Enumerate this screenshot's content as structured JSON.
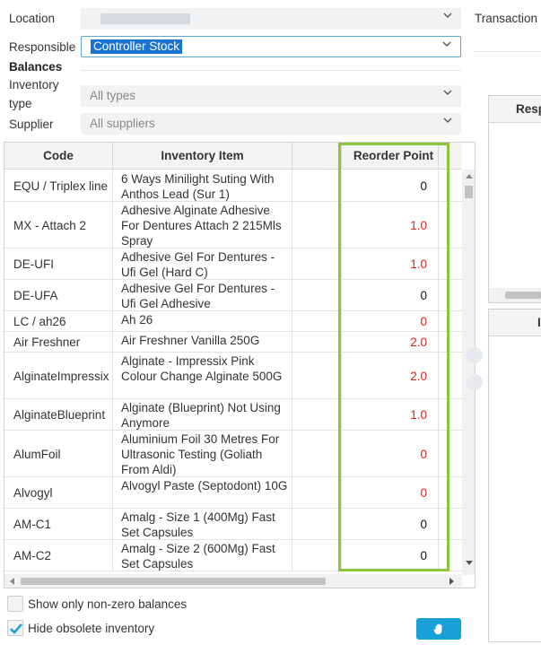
{
  "filters": {
    "location_label": "Location",
    "responsible_label": "Responsible",
    "responsible_value": "Controller Stock",
    "transaction_label": "Transaction",
    "balances_title": "Balances",
    "inventory_type_label_1": "Inventory",
    "inventory_type_label_2": "type",
    "inventory_type_value": "All types",
    "supplier_label": "Supplier",
    "supplier_value": "All suppliers"
  },
  "grid": {
    "columns": [
      "Code",
      "Inventory Item",
      "",
      "Reorder Point"
    ],
    "rows": [
      {
        "code": "EQU / Triplex line",
        "item": "6 Ways Minilight Suting With Anthos Lead (Sur 1)",
        "reorder": "0",
        "color": "black",
        "h": 35
      },
      {
        "code": "MX - Attach 2",
        "item": "Adhesive Alginate Adhesive For Dentures Attach 2 215Mls Spray",
        "reorder": "1.0",
        "color": "red",
        "h": 52
      },
      {
        "code": "DE-UFI",
        "item": "Adhesive Gel For Dentures - Ufi Gel (Hard C)",
        "reorder": "1.0",
        "color": "red",
        "h": 35
      },
      {
        "code": "DE-UFA",
        "item": "Adhesive Gel For Dentures - Ufi Gel Adhesive",
        "reorder": "0",
        "color": "black",
        "h": 35
      },
      {
        "code": "LC / ah26",
        "item": "Ah 26",
        "reorder": "0",
        "color": "red",
        "h": 23
      },
      {
        "code": "Air Freshner",
        "item": "Air Freshner Vanilla 250G",
        "reorder": "2.0",
        "color": "red",
        "h": 23
      },
      {
        "code": "AlginateImpressix",
        "item": "Alginate - Impressix Pink Colour Change Alginate 500G",
        "reorder": "2.0",
        "color": "red",
        "h": 52
      },
      {
        "code": "AlginateBlueprint",
        "item": "Alginate (Blueprint) Not Using Anymore",
        "reorder": "1.0",
        "color": "red",
        "h": 35
      },
      {
        "code": "AlumFoil",
        "item": "Aluminium Foil 30 Metres For Ultrasonic Testing (Goliath From Aldi)",
        "reorder": "0",
        "color": "red",
        "h": 52
      },
      {
        "code": "Alvogyl",
        "item": "Alvogyl Paste (Septodont) 10G",
        "reorder": "0",
        "color": "red",
        "h": 35
      },
      {
        "code": "AM-C1",
        "item": "Amalg - Size 1 (400Mg) Fast Set Capsules",
        "reorder": "0",
        "color": "black",
        "h": 35
      },
      {
        "code": "AM-C2",
        "item": "Amalg - Size 2 (600Mg) Fast Set Capsules",
        "reorder": "0",
        "color": "black",
        "h": 35
      }
    ]
  },
  "right_panel": {
    "top_header": "Resp",
    "bottom_header": "I"
  },
  "options": {
    "show_nonzero_label": "Show only non-zero balances",
    "hide_obsolete_label": "Hide obsolete inventory",
    "hide_obsolete_checked": true
  },
  "colors": {
    "accent": "#19a0d8",
    "highlight": "#8cc63f",
    "negative": "#e01e1e",
    "selection": "#1a73d0"
  },
  "icons": {
    "action_button": "hand-icon",
    "dropdown": "chevron-down-icon",
    "checkbox": "checkmark-icon"
  }
}
